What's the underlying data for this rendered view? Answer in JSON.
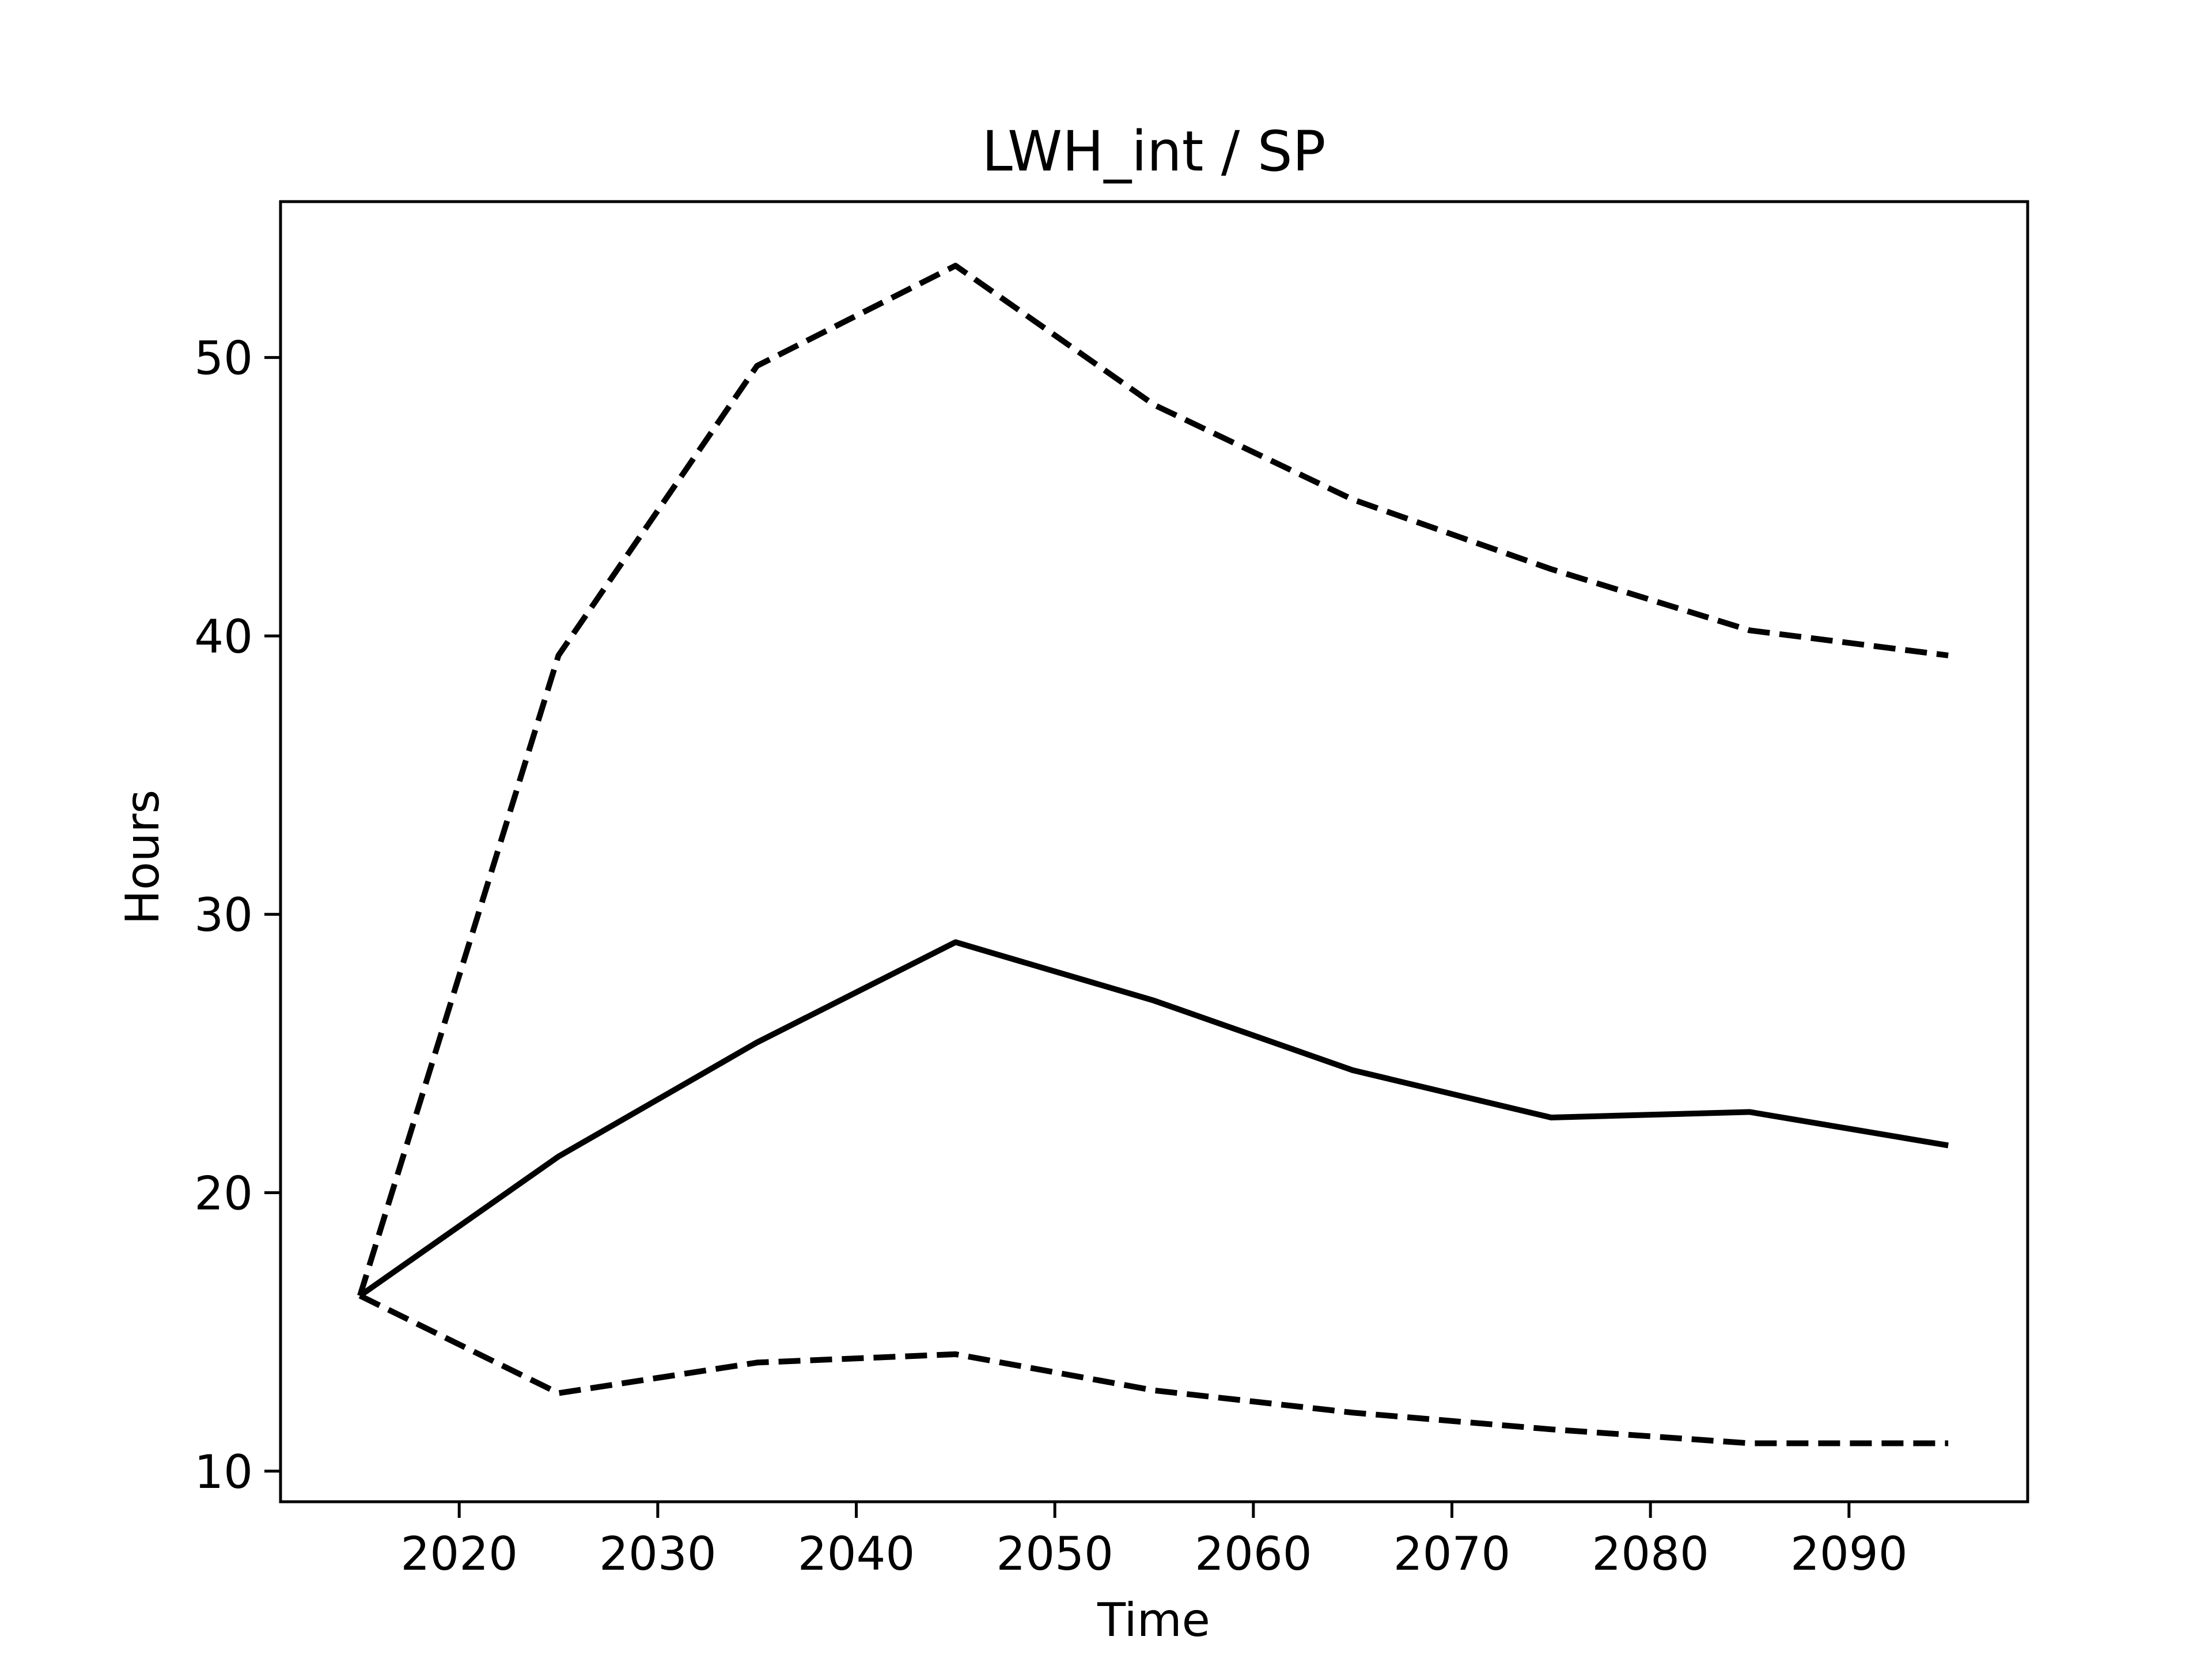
{
  "chart_data": {
    "type": "line",
    "title": "LWH_int / SP",
    "xlabel": "Time",
    "ylabel": "Hours",
    "x": [
      2015,
      2025,
      2035,
      2045,
      2055,
      2065,
      2075,
      2085,
      2095
    ],
    "xlim": [
      2011,
      2099
    ],
    "ylim": [
      8.9,
      55.6
    ],
    "xticks": [
      2020,
      2030,
      2040,
      2050,
      2060,
      2070,
      2080,
      2090
    ],
    "yticks": [
      10,
      20,
      30,
      40,
      50
    ],
    "grid": false,
    "series": [
      {
        "style": "solid",
        "color": "#000000",
        "values": [
          16.3,
          21.3,
          25.4,
          29.0,
          26.9,
          24.4,
          22.7,
          22.9,
          21.7
        ]
      },
      {
        "style": "dashed",
        "color": "#000000",
        "values": [
          16.3,
          39.3,
          49.7,
          53.3,
          48.3,
          44.9,
          42.4,
          40.2,
          39.3
        ]
      },
      {
        "style": "dashed",
        "color": "#000000",
        "values": [
          16.3,
          12.8,
          13.9,
          14.2,
          12.9,
          12.1,
          11.5,
          11.0,
          11.0
        ]
      }
    ]
  }
}
